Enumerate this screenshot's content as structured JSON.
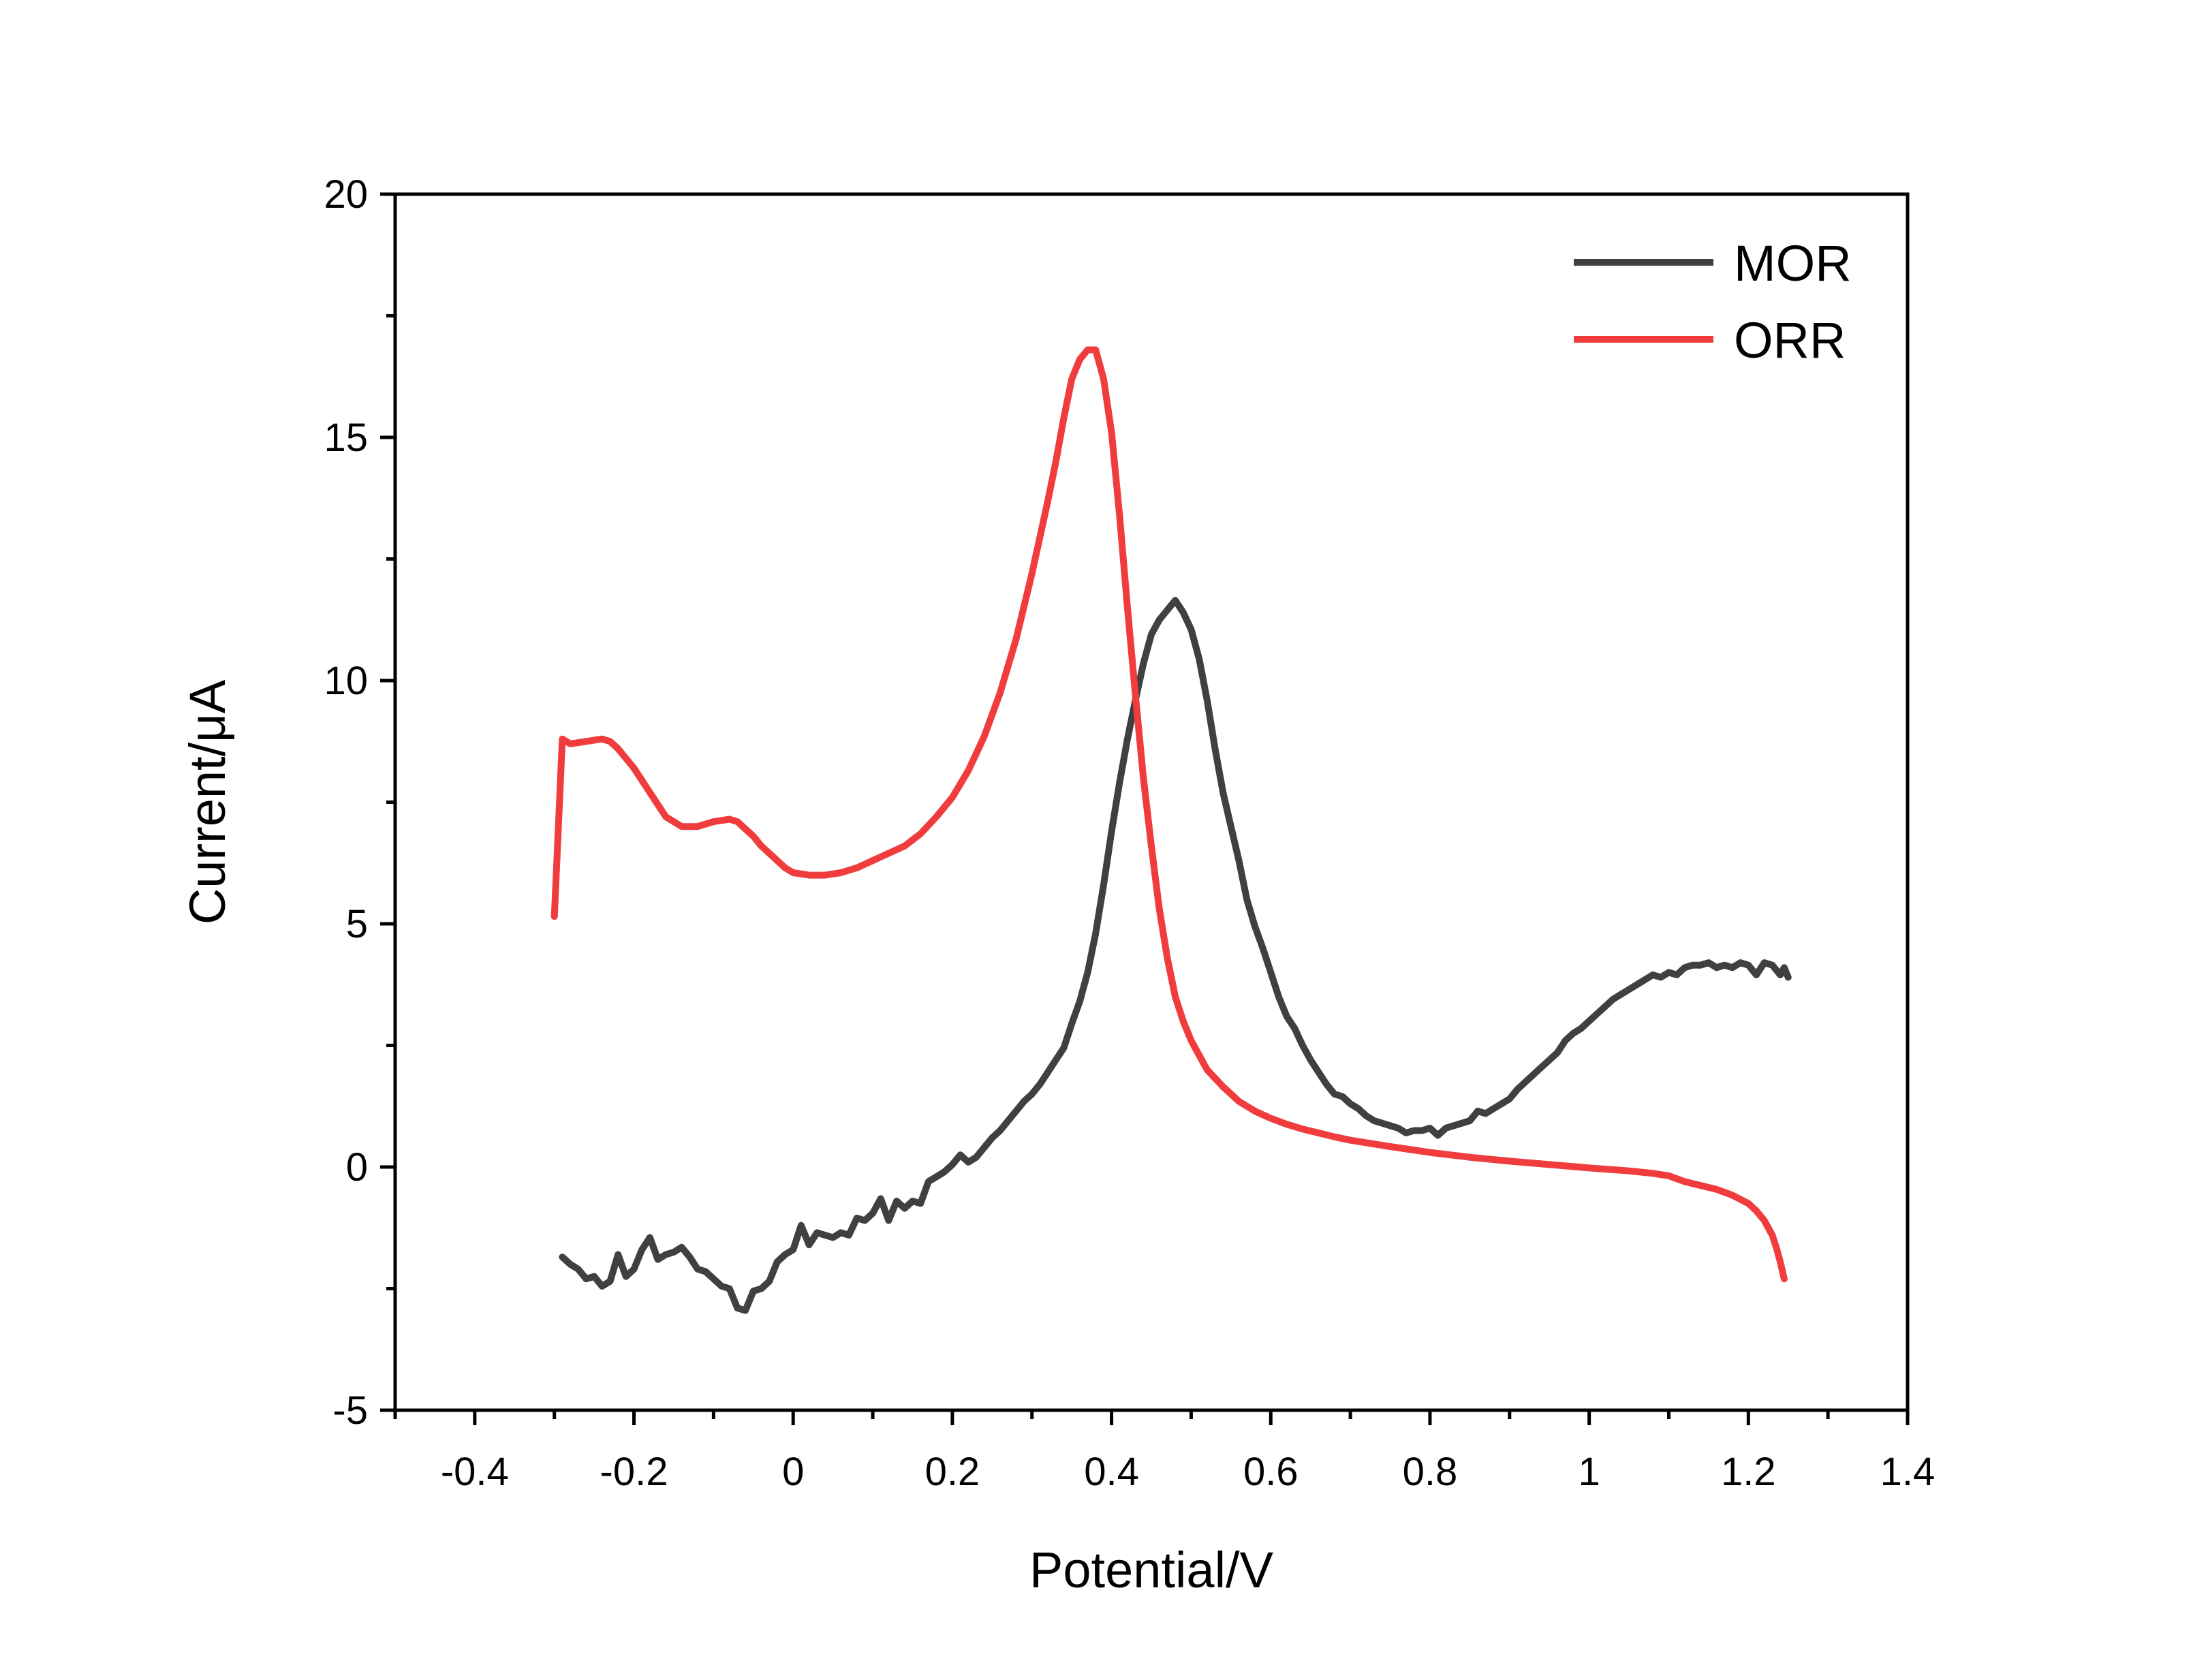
{
  "chart_data": {
    "type": "line",
    "title": "",
    "xlabel": "Potential/V",
    "ylabel": "Current/μA",
    "xlim": [
      -0.5,
      1.4
    ],
    "ylim": [
      -5,
      20
    ],
    "x_ticks": [
      -0.4,
      -0.2,
      0,
      0.2,
      0.4,
      0.6,
      0.8,
      1.0,
      1.2,
      1.4
    ],
    "x_tick_labels": [
      "-0.4",
      "-0.2",
      "0",
      "0.2",
      "0.4",
      "0.6",
      "0.8",
      "1",
      "1.2",
      "1.4"
    ],
    "y_ticks": [
      -5,
      0,
      5,
      10,
      15,
      20
    ],
    "y_tick_labels": [
      "-5",
      "0",
      "5",
      "10",
      "15",
      "20"
    ],
    "grid": false,
    "legend_position": "top-right",
    "series": [
      {
        "name": "MOR",
        "color": "#404040",
        "points": [
          [
            -0.29,
            -1.85
          ],
          [
            -0.28,
            -2.0
          ],
          [
            -0.27,
            -2.1
          ],
          [
            -0.26,
            -2.3
          ],
          [
            -0.25,
            -2.25
          ],
          [
            -0.24,
            -2.45
          ],
          [
            -0.23,
            -2.35
          ],
          [
            -0.22,
            -1.8
          ],
          [
            -0.21,
            -2.25
          ],
          [
            -0.2,
            -2.1
          ],
          [
            -0.19,
            -1.7
          ],
          [
            -0.18,
            -1.45
          ],
          [
            -0.17,
            -1.9
          ],
          [
            -0.16,
            -1.8
          ],
          [
            -0.15,
            -1.75
          ],
          [
            -0.14,
            -1.65
          ],
          [
            -0.13,
            -1.85
          ],
          [
            -0.12,
            -2.1
          ],
          [
            -0.11,
            -2.15
          ],
          [
            -0.1,
            -2.3
          ],
          [
            -0.09,
            -2.45
          ],
          [
            -0.08,
            -2.5
          ],
          [
            -0.07,
            -2.9
          ],
          [
            -0.06,
            -2.95
          ],
          [
            -0.05,
            -2.55
          ],
          [
            -0.04,
            -2.5
          ],
          [
            -0.03,
            -2.35
          ],
          [
            -0.02,
            -1.95
          ],
          [
            -0.01,
            -1.8
          ],
          [
            0.0,
            -1.7
          ],
          [
            0.01,
            -1.2
          ],
          [
            0.02,
            -1.6
          ],
          [
            0.03,
            -1.35
          ],
          [
            0.04,
            -1.4
          ],
          [
            0.05,
            -1.45
          ],
          [
            0.06,
            -1.35
          ],
          [
            0.07,
            -1.4
          ],
          [
            0.08,
            -1.05
          ],
          [
            0.09,
            -1.1
          ],
          [
            0.1,
            -0.95
          ],
          [
            0.11,
            -0.65
          ],
          [
            0.12,
            -1.1
          ],
          [
            0.13,
            -0.7
          ],
          [
            0.14,
            -0.85
          ],
          [
            0.15,
            -0.7
          ],
          [
            0.16,
            -0.75
          ],
          [
            0.17,
            -0.3
          ],
          [
            0.18,
            -0.2
          ],
          [
            0.19,
            -0.1
          ],
          [
            0.2,
            0.05
          ],
          [
            0.21,
            0.25
          ],
          [
            0.22,
            0.1
          ],
          [
            0.23,
            0.2
          ],
          [
            0.24,
            0.4
          ],
          [
            0.25,
            0.6
          ],
          [
            0.26,
            0.75
          ],
          [
            0.27,
            0.95
          ],
          [
            0.28,
            1.15
          ],
          [
            0.29,
            1.35
          ],
          [
            0.3,
            1.5
          ],
          [
            0.31,
            1.7
          ],
          [
            0.32,
            1.95
          ],
          [
            0.33,
            2.2
          ],
          [
            0.34,
            2.45
          ],
          [
            0.35,
            2.95
          ],
          [
            0.36,
            3.4
          ],
          [
            0.37,
            4.0
          ],
          [
            0.38,
            4.8
          ],
          [
            0.39,
            5.8
          ],
          [
            0.4,
            6.9
          ],
          [
            0.41,
            7.9
          ],
          [
            0.42,
            8.8
          ],
          [
            0.43,
            9.6
          ],
          [
            0.44,
            10.35
          ],
          [
            0.45,
            10.95
          ],
          [
            0.46,
            11.25
          ],
          [
            0.47,
            11.45
          ],
          [
            0.48,
            11.65
          ],
          [
            0.49,
            11.4
          ],
          [
            0.5,
            11.05
          ],
          [
            0.51,
            10.45
          ],
          [
            0.52,
            9.6
          ],
          [
            0.53,
            8.6
          ],
          [
            0.54,
            7.7
          ],
          [
            0.55,
            7.0
          ],
          [
            0.56,
            6.3
          ],
          [
            0.57,
            5.5
          ],
          [
            0.58,
            4.95
          ],
          [
            0.59,
            4.5
          ],
          [
            0.6,
            4.0
          ],
          [
            0.61,
            3.5
          ],
          [
            0.62,
            3.1
          ],
          [
            0.63,
            2.85
          ],
          [
            0.64,
            2.5
          ],
          [
            0.65,
            2.2
          ],
          [
            0.66,
            1.95
          ],
          [
            0.67,
            1.7
          ],
          [
            0.68,
            1.5
          ],
          [
            0.69,
            1.45
          ],
          [
            0.7,
            1.3
          ],
          [
            0.71,
            1.2
          ],
          [
            0.72,
            1.05
          ],
          [
            0.73,
            0.95
          ],
          [
            0.74,
            0.9
          ],
          [
            0.75,
            0.85
          ],
          [
            0.76,
            0.8
          ],
          [
            0.77,
            0.7
          ],
          [
            0.78,
            0.75
          ],
          [
            0.79,
            0.75
          ],
          [
            0.8,
            0.8
          ],
          [
            0.81,
            0.65
          ],
          [
            0.82,
            0.8
          ],
          [
            0.83,
            0.85
          ],
          [
            0.84,
            0.9
          ],
          [
            0.85,
            0.95
          ],
          [
            0.86,
            1.15
          ],
          [
            0.87,
            1.1
          ],
          [
            0.88,
            1.2
          ],
          [
            0.89,
            1.3
          ],
          [
            0.9,
            1.4
          ],
          [
            0.91,
            1.6
          ],
          [
            0.92,
            1.75
          ],
          [
            0.93,
            1.9
          ],
          [
            0.94,
            2.05
          ],
          [
            0.95,
            2.2
          ],
          [
            0.96,
            2.35
          ],
          [
            0.97,
            2.6
          ],
          [
            0.98,
            2.75
          ],
          [
            0.99,
            2.85
          ],
          [
            1.0,
            3.0
          ],
          [
            1.01,
            3.15
          ],
          [
            1.02,
            3.3
          ],
          [
            1.03,
            3.45
          ],
          [
            1.04,
            3.55
          ],
          [
            1.05,
            3.65
          ],
          [
            1.06,
            3.75
          ],
          [
            1.07,
            3.85
          ],
          [
            1.08,
            3.95
          ],
          [
            1.09,
            3.9
          ],
          [
            1.1,
            4.0
          ],
          [
            1.11,
            3.95
          ],
          [
            1.12,
            4.1
          ],
          [
            1.13,
            4.15
          ],
          [
            1.14,
            4.15
          ],
          [
            1.15,
            4.2
          ],
          [
            1.16,
            4.1
          ],
          [
            1.17,
            4.15
          ],
          [
            1.18,
            4.1
          ],
          [
            1.19,
            4.2
          ],
          [
            1.2,
            4.15
          ],
          [
            1.21,
            3.95
          ],
          [
            1.22,
            4.2
          ],
          [
            1.23,
            4.15
          ],
          [
            1.24,
            3.95
          ],
          [
            1.245,
            4.1
          ],
          [
            1.25,
            3.9
          ]
        ]
      },
      {
        "name": "ORR",
        "color": "#f03c3c",
        "points": [
          [
            -0.3,
            5.15
          ],
          [
            -0.29,
            8.8
          ],
          [
            -0.28,
            8.7
          ],
          [
            -0.26,
            8.75
          ],
          [
            -0.24,
            8.8
          ],
          [
            -0.23,
            8.75
          ],
          [
            -0.22,
            8.6
          ],
          [
            -0.2,
            8.2
          ],
          [
            -0.18,
            7.7
          ],
          [
            -0.17,
            7.45
          ],
          [
            -0.16,
            7.2
          ],
          [
            -0.14,
            7.0
          ],
          [
            -0.12,
            7.0
          ],
          [
            -0.1,
            7.1
          ],
          [
            -0.08,
            7.15
          ],
          [
            -0.07,
            7.1
          ],
          [
            -0.06,
            6.95
          ],
          [
            -0.05,
            6.8
          ],
          [
            -0.04,
            6.6
          ],
          [
            -0.03,
            6.45
          ],
          [
            -0.02,
            6.3
          ],
          [
            -0.01,
            6.15
          ],
          [
            0.0,
            6.05
          ],
          [
            0.02,
            6.0
          ],
          [
            0.04,
            6.0
          ],
          [
            0.06,
            6.05
          ],
          [
            0.08,
            6.15
          ],
          [
            0.1,
            6.3
          ],
          [
            0.12,
            6.45
          ],
          [
            0.14,
            6.6
          ],
          [
            0.16,
            6.85
          ],
          [
            0.18,
            7.2
          ],
          [
            0.2,
            7.6
          ],
          [
            0.22,
            8.15
          ],
          [
            0.24,
            8.85
          ],
          [
            0.26,
            9.75
          ],
          [
            0.28,
            10.85
          ],
          [
            0.3,
            12.2
          ],
          [
            0.32,
            13.7
          ],
          [
            0.33,
            14.5
          ],
          [
            0.34,
            15.4
          ],
          [
            0.35,
            16.2
          ],
          [
            0.36,
            16.6
          ],
          [
            0.37,
            16.8
          ],
          [
            0.38,
            16.8
          ],
          [
            0.39,
            16.2
          ],
          [
            0.4,
            15.1
          ],
          [
            0.41,
            13.4
          ],
          [
            0.42,
            11.5
          ],
          [
            0.43,
            9.7
          ],
          [
            0.44,
            8.0
          ],
          [
            0.45,
            6.6
          ],
          [
            0.46,
            5.3
          ],
          [
            0.47,
            4.3
          ],
          [
            0.48,
            3.5
          ],
          [
            0.49,
            3.0
          ],
          [
            0.5,
            2.6
          ],
          [
            0.52,
            2.0
          ],
          [
            0.54,
            1.65
          ],
          [
            0.56,
            1.35
          ],
          [
            0.58,
            1.15
          ],
          [
            0.6,
            1.0
          ],
          [
            0.62,
            0.88
          ],
          [
            0.64,
            0.78
          ],
          [
            0.66,
            0.7
          ],
          [
            0.68,
            0.62
          ],
          [
            0.7,
            0.55
          ],
          [
            0.75,
            0.42
          ],
          [
            0.8,
            0.3
          ],
          [
            0.85,
            0.2
          ],
          [
            0.9,
            0.12
          ],
          [
            0.95,
            0.05
          ],
          [
            1.0,
            -0.02
          ],
          [
            1.05,
            -0.08
          ],
          [
            1.08,
            -0.13
          ],
          [
            1.1,
            -0.18
          ],
          [
            1.12,
            -0.3
          ],
          [
            1.14,
            -0.38
          ],
          [
            1.16,
            -0.46
          ],
          [
            1.18,
            -0.58
          ],
          [
            1.2,
            -0.75
          ],
          [
            1.21,
            -0.9
          ],
          [
            1.22,
            -1.1
          ],
          [
            1.23,
            -1.4
          ],
          [
            1.235,
            -1.65
          ],
          [
            1.24,
            -1.95
          ],
          [
            1.245,
            -2.3
          ]
        ]
      }
    ]
  }
}
